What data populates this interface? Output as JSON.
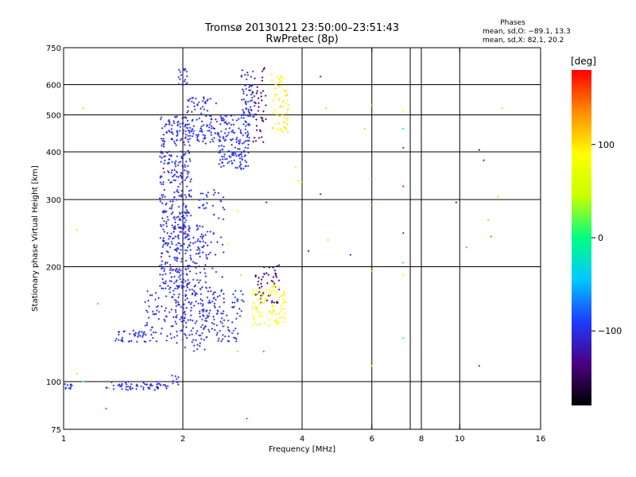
{
  "chart_data": {
    "type": "scatter",
    "title": "Tromsø 20130121 23:50:00–23:51:43",
    "subtitle": "RwPretec (8p)",
    "xlabel": "Frequency [MHz]",
    "ylabel": "Stationary phase Virtual Height [km]",
    "x_scale": "log2",
    "y_scale": "log",
    "xlim": [
      1,
      16
    ],
    "ylim": [
      75,
      750
    ],
    "x_ticks": [
      1,
      2,
      4,
      6,
      8,
      10,
      16
    ],
    "x_tick_labels": [
      "1",
      "2",
      "4",
      "6",
      "8",
      "10",
      "16"
    ],
    "x_grid": [
      2,
      4,
      6,
      7.5,
      8,
      10
    ],
    "y_ticks": [
      75,
      100,
      200,
      300,
      400,
      500,
      600,
      750
    ],
    "y_tick_labels": [
      "75",
      "100",
      "200",
      "300",
      "400",
      "500",
      "600",
      "750"
    ],
    "y_grid": [
      100,
      200,
      300,
      400,
      500,
      600
    ],
    "grid": true,
    "stats_title": "Phases",
    "stats_lines": [
      "mean, sd,O: −89.1, 13.3",
      "mean, sd,X:  82.1, 20.2"
    ],
    "colorbar": {
      "label": "[deg]",
      "range": [
        -180,
        180
      ],
      "ticks": [
        100,
        0,
        -100
      ],
      "tick_labels": [
        "100",
        "0",
        "−100"
      ],
      "colors": [
        "#000000",
        "#4b0082",
        "#1f3bff",
        "#00c8ff",
        "#00ff80",
        "#c8ff00",
        "#ffff00",
        "#ff8c00",
        "#ff0000"
      ]
    },
    "clusters": [
      {
        "freq": [
          1.0,
          1.05
        ],
        "height": [
          95,
          99
        ],
        "phase": -100,
        "n": 10
      },
      {
        "freq": [
          1.28,
          1.85
        ],
        "height": [
          95,
          100
        ],
        "phase": -100,
        "n": 60
      },
      {
        "freq": [
          1.85,
          1.95
        ],
        "height": [
          98,
          104
        ],
        "phase": -100,
        "n": 8
      },
      {
        "freq": [
          1.35,
          1.6
        ],
        "height": [
          127,
          137
        ],
        "phase": -100,
        "n": 35
      },
      {
        "freq": [
          1.6,
          2.85
        ],
        "height": [
          127,
          175
        ],
        "phase": -100,
        "n": 200
      },
      {
        "freq": [
          1.75,
          2.1
        ],
        "height": [
          175,
          500
        ],
        "phase": -100,
        "n": 420
      },
      {
        "freq": [
          1.9,
          2.3
        ],
        "height": [
          120,
          260
        ],
        "phase": -100,
        "n": 160
      },
      {
        "freq": [
          2.15,
          2.55
        ],
        "height": [
          140,
          320
        ],
        "phase": -100,
        "n": 80
      },
      {
        "freq": [
          2.05,
          2.45
        ],
        "height": [
          420,
          560
        ],
        "phase": -100,
        "n": 100
      },
      {
        "freq": [
          2.45,
          2.95
        ],
        "height": [
          360,
          500
        ],
        "phase": -100,
        "n": 160
      },
      {
        "freq": [
          2.8,
          3.05
        ],
        "height": [
          480,
          660
        ],
        "phase": -100,
        "n": 60
      },
      {
        "freq": [
          1.95,
          2.05
        ],
        "height": [
          600,
          660
        ],
        "phase": -100,
        "n": 16
      },
      {
        "freq": [
          3.0,
          3.25
        ],
        "height": [
          420,
          680
        ],
        "phase": -140,
        "n": 40
      },
      {
        "freq": [
          3.05,
          3.5
        ],
        "height": [
          160,
          205
        ],
        "phase": -140,
        "n": 50
      },
      {
        "freq": [
          3.0,
          3.25
        ],
        "height": [
          140,
          175
        ],
        "phase": 90,
        "n": 40
      },
      {
        "freq": [
          3.3,
          3.65
        ],
        "height": [
          140,
          180
        ],
        "phase": 90,
        "n": 55
      },
      {
        "freq": [
          3.35,
          3.7
        ],
        "height": [
          450,
          650
        ],
        "phase": 95,
        "n": 60
      },
      {
        "freq": [
          3.85,
          4.0
        ],
        "height": [
          330,
          420
        ],
        "phase": 40,
        "n": 3
      }
    ],
    "scattered_points": [
      {
        "freq": 1.12,
        "height": 520,
        "phase": 110
      },
      {
        "freq": 1.08,
        "height": 250,
        "phase": 40
      },
      {
        "freq": 1.08,
        "height": 105,
        "phase": 40
      },
      {
        "freq": 1.12,
        "height": 100,
        "phase": 10
      },
      {
        "freq": 1.22,
        "height": 160,
        "phase": 140
      },
      {
        "freq": 1.28,
        "height": 85,
        "phase": 160
      },
      {
        "freq": 1.3,
        "height": 96,
        "phase": 120
      },
      {
        "freq": 2.55,
        "height": 140,
        "phase": 30
      },
      {
        "freq": 2.6,
        "height": 230,
        "phase": 90
      },
      {
        "freq": 2.75,
        "height": 280,
        "phase": 80
      },
      {
        "freq": 2.8,
        "height": 190,
        "phase": 110
      },
      {
        "freq": 2.75,
        "height": 120,
        "phase": 30
      },
      {
        "freq": 2.9,
        "height": 80,
        "phase": 150
      },
      {
        "freq": 3.25,
        "height": 295,
        "phase": -110
      },
      {
        "freq": 3.2,
        "height": 120,
        "phase": 150
      },
      {
        "freq": 4.15,
        "height": 220,
        "phase": -140
      },
      {
        "freq": 4.45,
        "height": 630,
        "phase": -110
      },
      {
        "freq": 4.45,
        "height": 310,
        "phase": -110
      },
      {
        "freq": 4.6,
        "height": 520,
        "phase": 110
      },
      {
        "freq": 4.65,
        "height": 235,
        "phase": 110
      },
      {
        "freq": 5.3,
        "height": 215,
        "phase": -100
      },
      {
        "freq": 5.75,
        "height": 460,
        "phase": 110
      },
      {
        "freq": 6.0,
        "height": 530,
        "phase": 130
      },
      {
        "freq": 6.0,
        "height": 340,
        "phase": 150
      },
      {
        "freq": 6.0,
        "height": 290,
        "phase": 140
      },
      {
        "freq": 6.0,
        "height": 195,
        "phase": 120
      },
      {
        "freq": 6.0,
        "height": 110,
        "phase": 60
      },
      {
        "freq": 7.2,
        "height": 510,
        "phase": 90
      },
      {
        "freq": 7.2,
        "height": 460,
        "phase": 0
      },
      {
        "freq": 7.2,
        "height": 410,
        "phase": -100
      },
      {
        "freq": 7.2,
        "height": 325,
        "phase": 170
      },
      {
        "freq": 7.2,
        "height": 245,
        "phase": -100
      },
      {
        "freq": 7.2,
        "height": 205,
        "phase": 10
      },
      {
        "freq": 7.2,
        "height": 190,
        "phase": 60
      },
      {
        "freq": 7.2,
        "height": 130,
        "phase": 10
      },
      {
        "freq": 9.8,
        "height": 295,
        "phase": -120
      },
      {
        "freq": 10.4,
        "height": 225,
        "phase": 140
      },
      {
        "freq": 11.2,
        "height": 405,
        "phase": -120
      },
      {
        "freq": 11.5,
        "height": 380,
        "phase": -100
      },
      {
        "freq": 11.2,
        "height": 110,
        "phase": -100
      },
      {
        "freq": 11.8,
        "height": 265,
        "phase": 120
      },
      {
        "freq": 12.0,
        "height": 240,
        "phase": 150
      },
      {
        "freq": 12.5,
        "height": 305,
        "phase": 110
      },
      {
        "freq": 12.8,
        "height": 520,
        "phase": 110
      }
    ]
  }
}
